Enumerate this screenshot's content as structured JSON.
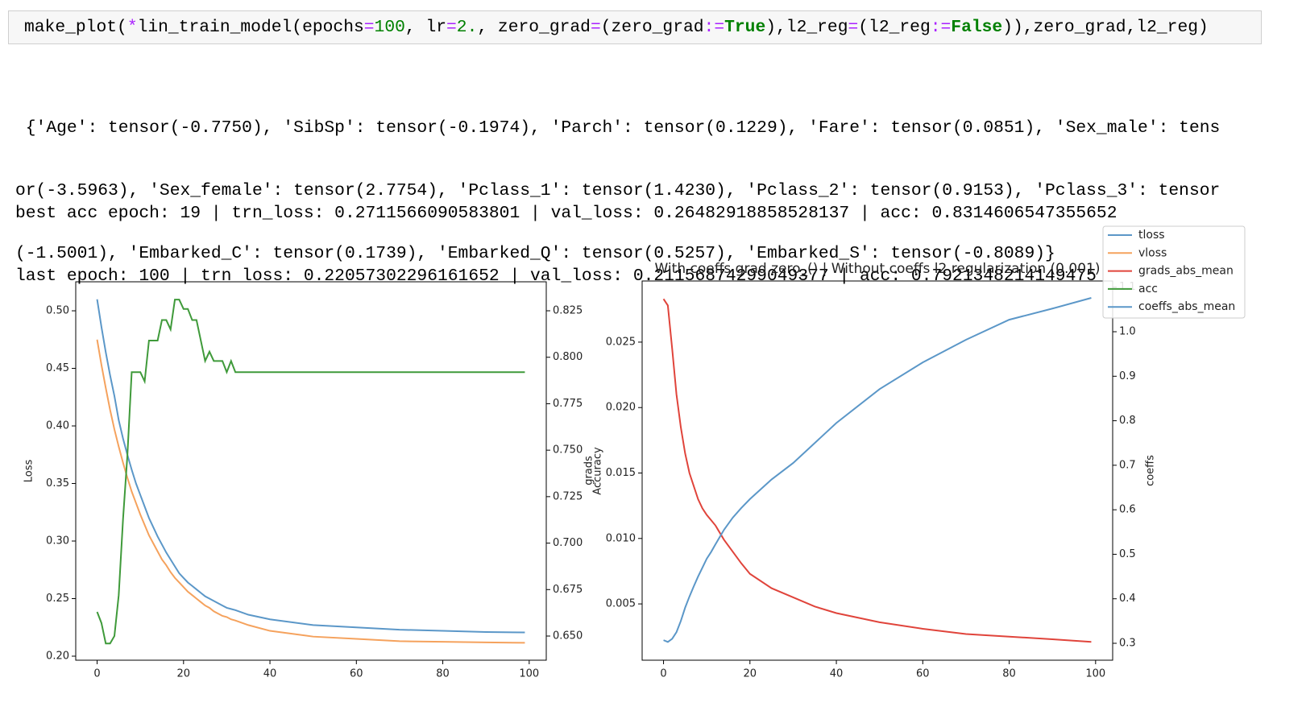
{
  "code": {
    "tokens": [
      "make_plot(",
      "*",
      "lin_train_model(epochs",
      "=",
      "100",
      ", lr",
      "=",
      "2.",
      ", zero_grad",
      "=",
      "(zero_grad",
      ":=",
      "True",
      "),l2_reg",
      "=",
      "(l2_reg",
      ":=",
      "False",
      ")),zero_grad,l2_reg)"
    ]
  },
  "output": {
    "lines": [
      " {'Age': tensor(-0.7750), 'SibSp': tensor(-0.1974), 'Parch': tensor(0.1229), 'Fare': tensor(0.0851), 'Sex_male': tens",
      "or(-3.5963), 'Sex_female': tensor(2.7754), 'Pclass_1': tensor(1.4230), 'Pclass_2': tensor(0.9153), 'Pclass_3': tensor",
      "(-1.5001), 'Embarked_C': tensor(0.1739), 'Embarked_Q': tensor(0.5257), 'Embarked_S': tensor(-0.8089)}"
    ],
    "summary": [
      "best acc epoch: 19 | trn_loss: 0.2711566090583801 | val_loss: 0.26482918858528137 | acc: 0.8314606547355652",
      "last epoch: 100 | trn_loss: 0.22057302296161652 | val_loss: 0.21156874299049377 | acc: 0.7921348214149475"
    ]
  },
  "chart_data": [
    {
      "type": "line",
      "ylabel": "Loss",
      "y2label": "Accuracy",
      "x": [
        0,
        1,
        2,
        3,
        4,
        5,
        6,
        7,
        8,
        9,
        10,
        11,
        12,
        13,
        14,
        15,
        16,
        17,
        18,
        19,
        20,
        21,
        22,
        23,
        24,
        25,
        26,
        27,
        28,
        29,
        30,
        31,
        32,
        35,
        40,
        50,
        60,
        70,
        80,
        90,
        99
      ],
      "xlim": [
        -4.95,
        103.95
      ],
      "xticks": [
        0,
        20,
        40,
        60,
        80,
        100
      ],
      "ylim": [
        0.1965,
        0.5252
      ],
      "yticks": [
        {
          "value": 0.2,
          "label": "0.20"
        },
        0.25,
        {
          "value": 0.3,
          "label": "0.30"
        },
        0.35,
        {
          "value": 0.4,
          "label": "0.40"
        },
        0.45,
        {
          "value": 0.5,
          "label": "0.50"
        }
      ],
      "y2lim": [
        0.637,
        0.8406
      ],
      "y2ticks": [
        {
          "value": 0.65,
          "label": "0.650"
        },
        0.675,
        {
          "value": 0.7,
          "label": "0.700"
        },
        0.725,
        {
          "value": 0.75,
          "label": "0.750"
        },
        0.775,
        {
          "value": 0.8,
          "label": "0.800"
        },
        0.825
      ],
      "series": [
        {
          "name": "tloss",
          "color": "#5b97c8",
          "values": [
            0.51,
            0.486,
            0.464,
            0.444,
            0.426,
            0.405,
            0.389,
            0.375,
            0.362,
            0.35,
            0.34,
            0.33,
            0.32,
            0.312,
            0.304,
            0.297,
            0.29,
            0.284,
            0.278,
            0.272,
            0.268,
            0.264,
            0.261,
            0.258,
            0.255,
            0.252,
            0.25,
            0.248,
            0.246,
            0.244,
            0.242,
            0.241,
            0.24,
            0.236,
            0.232,
            0.227,
            0.225,
            0.223,
            0.222,
            0.221,
            0.2206
          ]
        },
        {
          "name": "vloss",
          "color": "#f5a25d",
          "values": [
            0.475,
            0.453,
            0.433,
            0.414,
            0.397,
            0.382,
            0.368,
            0.355,
            0.343,
            0.333,
            0.323,
            0.314,
            0.305,
            0.298,
            0.291,
            0.284,
            0.279,
            0.273,
            0.268,
            0.264,
            0.26,
            0.256,
            0.253,
            0.25,
            0.247,
            0.244,
            0.242,
            0.239,
            0.237,
            0.235,
            0.234,
            0.232,
            0.231,
            0.227,
            0.222,
            0.217,
            0.215,
            0.213,
            0.2125,
            0.212,
            0.2116
          ]
        },
        {
          "name": "acc",
          "color": "#3f9a3a",
          "axis": "y2",
          "values": [
            0.663,
            0.657,
            0.646,
            0.646,
            0.65,
            0.672,
            0.713,
            0.747,
            0.792,
            0.792,
            0.792,
            0.787,
            0.809,
            0.809,
            0.809,
            0.82,
            0.82,
            0.815,
            0.831,
            0.831,
            0.826,
            0.826,
            0.82,
            0.82,
            0.809,
            0.798,
            0.803,
            0.798,
            0.798,
            0.798,
            0.792,
            0.798,
            0.792,
            0.792,
            0.792,
            0.792,
            0.792,
            0.792,
            0.792,
            0.792,
            0.792
          ]
        }
      ]
    },
    {
      "type": "line",
      "title": "With coeffs.grad.zero_() | Without coeffs l2 regularization (0.001)",
      "ylabel": "grads",
      "y2label": "coeffs",
      "legend": "upper right",
      "x": [
        0,
        1,
        2,
        3,
        4,
        5,
        6,
        7,
        8,
        9,
        10,
        11,
        12,
        14,
        16,
        18,
        20,
        25,
        30,
        35,
        40,
        50,
        60,
        70,
        80,
        90,
        99
      ],
      "xlim": [
        -4.95,
        103.95
      ],
      "xticks": [
        0,
        20,
        40,
        60,
        80,
        100
      ],
      "ylim": [
        0.0007,
        0.02967
      ],
      "yticks": [
        0.005,
        {
          "value": 0.01,
          "label": "0.010"
        },
        0.015,
        {
          "value": 0.02,
          "label": "0.020"
        },
        0.025
      ],
      "y2lim": [
        0.262,
        1.114
      ],
      "y2ticks": [
        0.3,
        0.4,
        0.5,
        0.6,
        0.7,
        0.8,
        0.9,
        {
          "value": 1,
          "label": "1.0"
        },
        1.1
      ],
      "series": [
        {
          "name": "grads_abs_mean",
          "color": "#e0443b",
          "values": [
            0.0283,
            0.0278,
            0.0245,
            0.021,
            0.0185,
            0.0165,
            0.015,
            0.014,
            0.013,
            0.0123,
            0.0118,
            0.0114,
            0.011,
            0.0099,
            0.009,
            0.0081,
            0.0073,
            0.0062,
            0.0055,
            0.0048,
            0.0043,
            0.0036,
            0.0031,
            0.0027,
            0.0025,
            0.0023,
            0.0021
          ]
        },
        {
          "name": "coeffs_abs_mean",
          "color": "#5b97c8",
          "axis": "y2",
          "values": [
            0.307,
            0.303,
            0.31,
            0.325,
            0.35,
            0.38,
            0.405,
            0.428,
            0.45,
            0.47,
            0.49,
            0.505,
            0.522,
            0.555,
            0.582,
            0.604,
            0.624,
            0.668,
            0.705,
            0.75,
            0.795,
            0.871,
            0.931,
            0.982,
            1.027,
            1.052,
            1.076
          ]
        }
      ]
    }
  ]
}
